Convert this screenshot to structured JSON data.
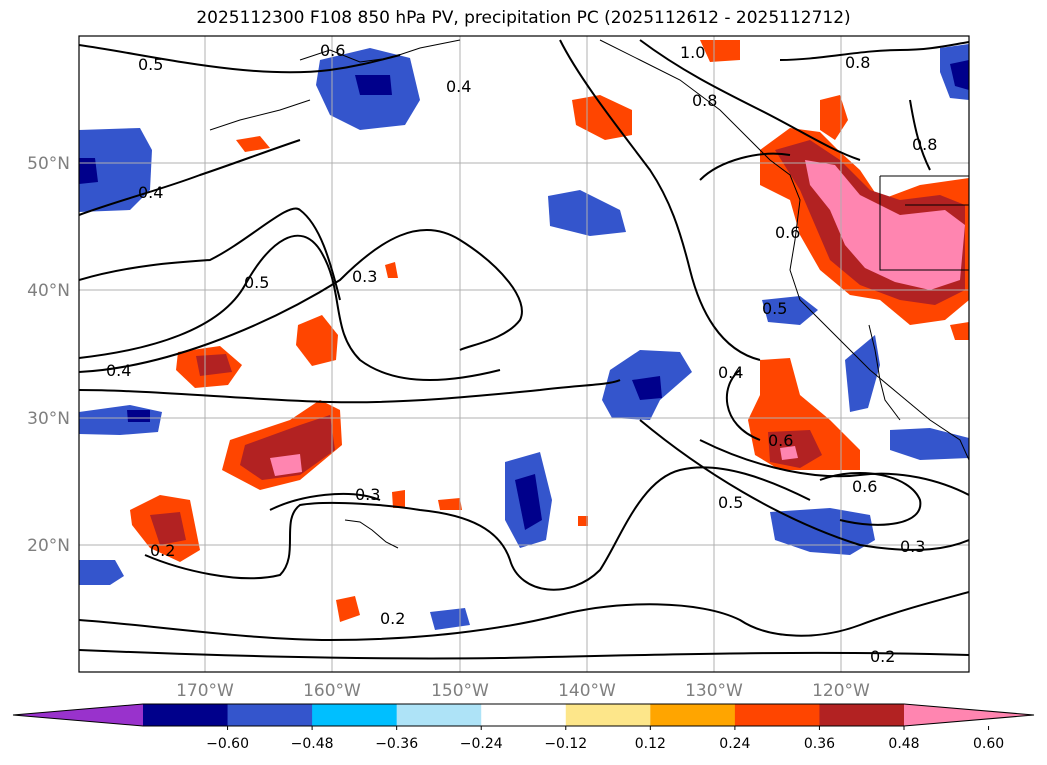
{
  "title": "2025112300 F108 850 hPa PV, precipitation PC (2025112612 - 2025112712)",
  "map": {
    "lat_labels": [
      "50°N",
      "40°N",
      "30°N",
      "20°N"
    ],
    "lon_labels": [
      "170°W",
      "160°W",
      "150°W",
      "140°W",
      "130°W",
      "120°W"
    ],
    "contour_labels": [
      "0.5",
      "0.6",
      "0.4",
      "1.0",
      "0.8",
      "0.8",
      "0.8",
      "0.4",
      "0.5",
      "0.3",
      "0.4",
      "0.5",
      "0.6",
      "0.4",
      "0.6",
      "0.5",
      "0.6",
      "0.3",
      "0.3",
      "0.2",
      "0.2",
      "0.2"
    ]
  },
  "colorbar": {
    "ticks": [
      "−0.60",
      "−0.48",
      "−0.36",
      "−0.24",
      "−0.12",
      "0.12",
      "0.24",
      "0.36",
      "0.48",
      "0.60"
    ],
    "colors": [
      "#9932cc",
      "#00008b",
      "#3455cc",
      "#00bfff",
      "#aee3f7",
      "#ffffff",
      "#fde68a",
      "#ffa500",
      "#ff4500",
      "#b22222",
      "#ff85b0"
    ]
  }
}
